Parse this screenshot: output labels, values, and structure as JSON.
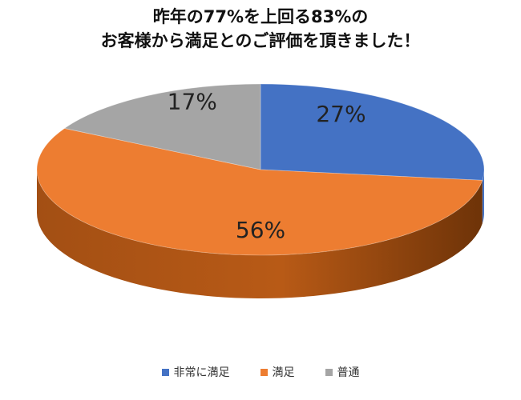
{
  "title_lines": [
    "昨年の77%を上回る83%の",
    "お客様から満足とのご評価を頂きました！"
  ],
  "chart_data": {
    "type": "pie",
    "title": "昨年の77%を上回る83%のお客様から満足とのご評価を頂きました！",
    "categories": [
      "非常に満足",
      "満足",
      "普通"
    ],
    "values": [
      27,
      56,
      17
    ],
    "labels": [
      "27%",
      "56%",
      "17%"
    ],
    "colors": [
      "#4472C4",
      "#ED7D31",
      "#A5A5A5"
    ],
    "legend_position": "bottom",
    "style": "3d"
  }
}
